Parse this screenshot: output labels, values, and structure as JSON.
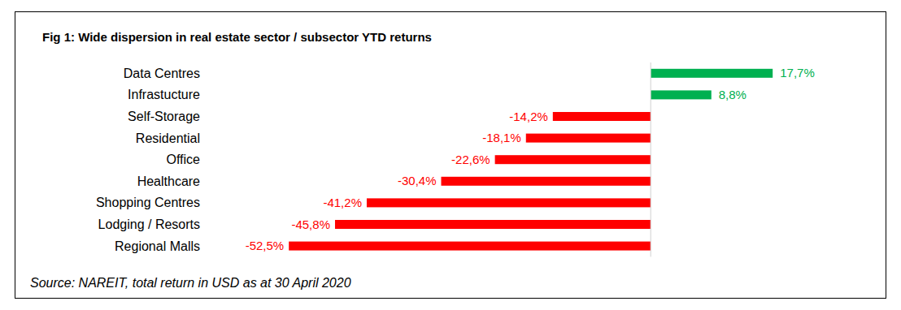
{
  "chart_data": {
    "type": "bar",
    "orientation": "horizontal",
    "title": "Fig 1: Wide dispersion in real estate sector / subsector YTD returns",
    "source": "Source: NAREIT, total return in USD as at 30 April 2020",
    "categories": [
      "Data Centres",
      "Infrastucture",
      "Self-Storage",
      "Residential",
      "Office",
      "Healthcare",
      "Shopping Centres",
      "Lodging / Resorts",
      "Regional Malls"
    ],
    "values": [
      17.7,
      8.8,
      -14.2,
      -18.1,
      -22.6,
      -30.4,
      -41.2,
      -45.8,
      -52.5
    ],
    "value_labels": [
      "17,7%",
      "8,8%",
      "-14,2%",
      "-18,1%",
      "-22,6%",
      "-30,4%",
      "-41,2%",
      "-45,8%",
      "-52,5%"
    ],
    "colors": [
      "#00b050",
      "#00b050",
      "#ff0000",
      "#ff0000",
      "#ff0000",
      "#ff0000",
      "#ff0000",
      "#ff0000",
      "#ff0000"
    ],
    "xlim": [
      -55,
      20
    ],
    "data_labels": true,
    "tick_labels": false,
    "grid": false
  }
}
